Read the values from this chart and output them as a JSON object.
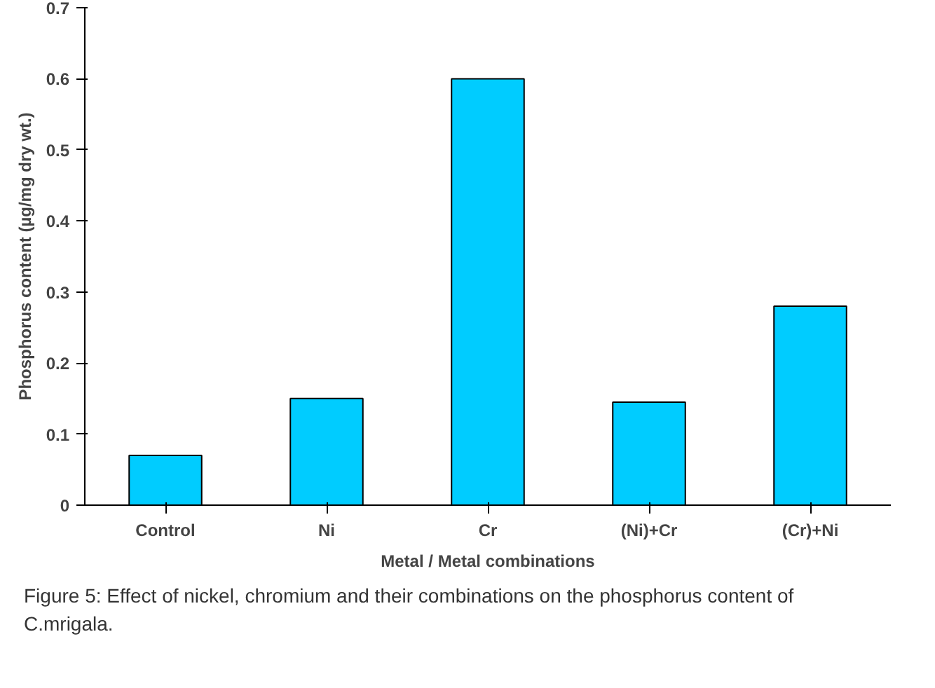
{
  "chart_data": {
    "type": "bar",
    "xlabel": "Metal / Metal combinations",
    "ylabel": "Phosphorus content (µg/mg dry wt.)",
    "categories": [
      "Control",
      "Ni",
      "Cr",
      "(Ni)+Cr",
      "(Cr)+Ni"
    ],
    "values": [
      0.07,
      0.15,
      0.6,
      0.145,
      0.28
    ],
    "color": "#00ccff",
    "ylim": [
      0,
      0.7
    ],
    "yticks": [
      0,
      0.1,
      0.2,
      0.3,
      0.4,
      0.5,
      0.6,
      0.7
    ],
    "grid": false,
    "annotations": [
      "Figure 5: Effect of nickel, chromium and their combinations on the phosphorus content of C.mrigala."
    ]
  }
}
